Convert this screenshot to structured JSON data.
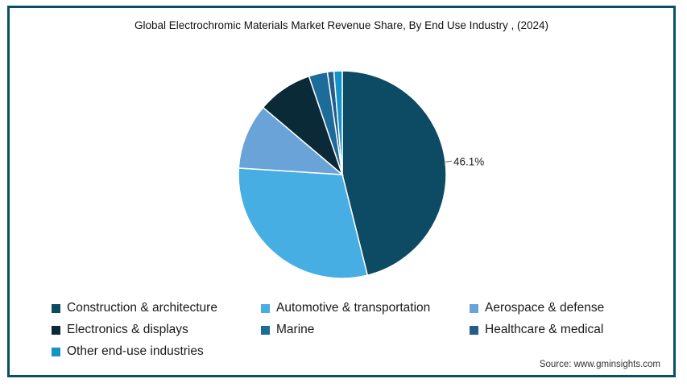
{
  "chart_data": {
    "type": "pie",
    "title": "Global Electrochromic Materials Market Revenue Share, By End Use Industry , (2024)",
    "slices": [
      {
        "label": "Construction & architecture",
        "value": 46.1,
        "color": "#0d4a63",
        "data_label": "46.1%"
      },
      {
        "label": "Automotive & transportation",
        "value": 29.9,
        "color": "#47aee3"
      },
      {
        "label": "Aerospace & defense",
        "value": 10.2,
        "color": "#6aa3d8"
      },
      {
        "label": "Electronics & displays",
        "value": 8.6,
        "color": "#0b2a38"
      },
      {
        "label": "Marine",
        "value": 2.9,
        "color": "#1d6b9a"
      },
      {
        "label": "Healthcare & medical",
        "value": 1.0,
        "color": "#245c8a"
      },
      {
        "label": "Other end-use industries",
        "value": 1.3,
        "color": "#1493c9"
      }
    ],
    "start_angle_deg": 0,
    "direction": "clockwise",
    "legend_position": "bottom"
  },
  "source": "Source: www.gminsights.com"
}
